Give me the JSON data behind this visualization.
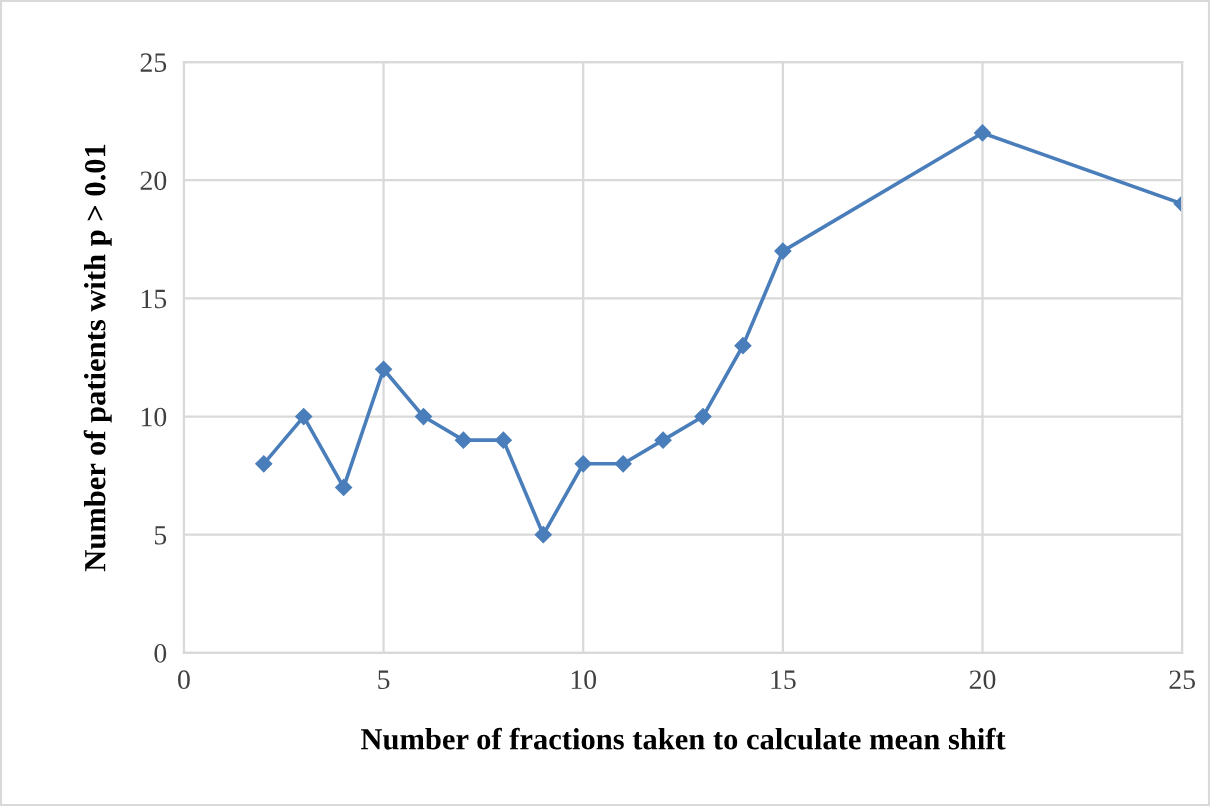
{
  "chart_data": {
    "type": "line",
    "xlabel": "Number of fractions taken to calculate mean shift",
    "ylabel": "Number of patients with p > 0.01",
    "x": [
      2,
      3,
      4,
      5,
      6,
      7,
      8,
      9,
      10,
      11,
      12,
      13,
      14,
      15,
      20,
      25
    ],
    "series": [
      {
        "color": "#4a7ebb",
        "values": [
          8,
          10,
          7,
          12,
          10,
          9,
          9,
          5,
          8,
          8,
          9,
          10,
          13,
          17,
          22,
          19
        ]
      }
    ],
    "xlim": [
      0,
      25
    ],
    "xticks": [
      0,
      5,
      10,
      15,
      20,
      25
    ],
    "ylim": [
      0,
      25
    ],
    "yticks": [
      0,
      5,
      10,
      15,
      20,
      25
    ],
    "grid": true,
    "marker": "diamond",
    "line_style": "solid",
    "legend": false
  }
}
